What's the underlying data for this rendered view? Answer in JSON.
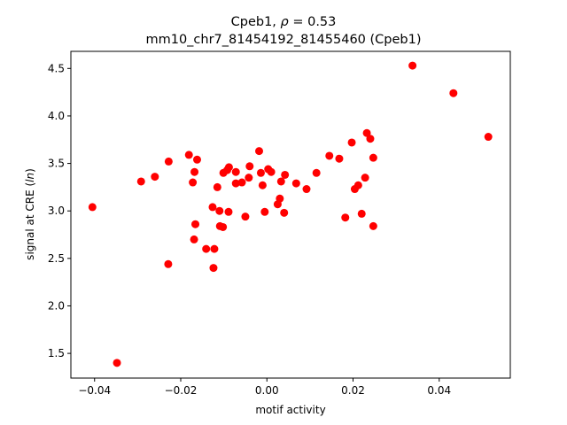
{
  "chart_data": {
    "type": "scatter",
    "title_line1": "Cpeb1, ρ = 0.53",
    "title_line2": "mm10_chr7_81454192_81455460 (Cpeb1)",
    "xlabel": "motif activity",
    "ylabel": "signal at CRE (ln)",
    "xlim": [
      -0.0455,
      0.0565
    ],
    "ylim": [
      1.24,
      4.68
    ],
    "xticks": [
      -0.04,
      -0.02,
      0.0,
      0.02,
      0.04
    ],
    "xtick_labels": [
      "−0.04",
      "−0.02",
      "0.00",
      "0.02",
      "0.04"
    ],
    "yticks": [
      1.5,
      2.0,
      2.5,
      3.0,
      3.5,
      4.0,
      4.5
    ],
    "ytick_labels": [
      "1.5",
      "2.0",
      "2.5",
      "3.0",
      "3.5",
      "4.0",
      "4.5"
    ],
    "grid": false,
    "marker_color": "#ff0000",
    "points": [
      {
        "x": -0.0405,
        "y": 3.04
      },
      {
        "x": -0.0348,
        "y": 1.4
      },
      {
        "x": -0.0292,
        "y": 3.31
      },
      {
        "x": -0.026,
        "y": 3.36
      },
      {
        "x": -0.0228,
        "y": 3.52
      },
      {
        "x": -0.0229,
        "y": 2.44
      },
      {
        "x": -0.0181,
        "y": 3.59
      },
      {
        "x": -0.0172,
        "y": 3.3
      },
      {
        "x": -0.0168,
        "y": 3.41
      },
      {
        "x": -0.0162,
        "y": 3.54
      },
      {
        "x": -0.0166,
        "y": 2.86
      },
      {
        "x": -0.0169,
        "y": 2.7
      },
      {
        "x": -0.0141,
        "y": 2.6
      },
      {
        "x": -0.0126,
        "y": 3.04
      },
      {
        "x": -0.0122,
        "y": 2.6
      },
      {
        "x": -0.0124,
        "y": 2.4
      },
      {
        "x": -0.0115,
        "y": 3.25
      },
      {
        "x": -0.011,
        "y": 3.0
      },
      {
        "x": -0.0109,
        "y": 2.84
      },
      {
        "x": -0.0102,
        "y": 2.83
      },
      {
        "x": -0.0101,
        "y": 3.4
      },
      {
        "x": -0.0092,
        "y": 3.43
      },
      {
        "x": -0.0088,
        "y": 3.46
      },
      {
        "x": -0.0089,
        "y": 2.99
      },
      {
        "x": -0.0072,
        "y": 3.29
      },
      {
        "x": -0.0072,
        "y": 3.41
      },
      {
        "x": -0.0058,
        "y": 3.3
      },
      {
        "x": -0.005,
        "y": 2.94
      },
      {
        "x": -0.0042,
        "y": 3.35
      },
      {
        "x": -0.004,
        "y": 3.47
      },
      {
        "x": -0.0018,
        "y": 3.63
      },
      {
        "x": -0.0014,
        "y": 3.4
      },
      {
        "x": -0.001,
        "y": 3.27
      },
      {
        "x": -0.0005,
        "y": 2.99
      },
      {
        "x": 0.0003,
        "y": 3.44
      },
      {
        "x": 0.001,
        "y": 3.41
      },
      {
        "x": 0.0025,
        "y": 3.07
      },
      {
        "x": 0.003,
        "y": 3.13
      },
      {
        "x": 0.0033,
        "y": 3.31
      },
      {
        "x": 0.004,
        "y": 2.98
      },
      {
        "x": 0.0042,
        "y": 3.38
      },
      {
        "x": 0.0068,
        "y": 3.29
      },
      {
        "x": 0.0092,
        "y": 3.23
      },
      {
        "x": 0.0115,
        "y": 3.4
      },
      {
        "x": 0.0145,
        "y": 3.58
      },
      {
        "x": 0.0168,
        "y": 3.55
      },
      {
        "x": 0.0182,
        "y": 2.93
      },
      {
        "x": 0.0197,
        "y": 3.72
      },
      {
        "x": 0.0204,
        "y": 3.23
      },
      {
        "x": 0.0212,
        "y": 3.27
      },
      {
        "x": 0.022,
        "y": 2.97
      },
      {
        "x": 0.0228,
        "y": 3.35
      },
      {
        "x": 0.0232,
        "y": 3.82
      },
      {
        "x": 0.024,
        "y": 3.76
      },
      {
        "x": 0.0247,
        "y": 3.56
      },
      {
        "x": 0.0247,
        "y": 2.84
      },
      {
        "x": 0.0338,
        "y": 4.53
      },
      {
        "x": 0.0433,
        "y": 4.24
      },
      {
        "x": 0.0514,
        "y": 3.78
      }
    ]
  }
}
